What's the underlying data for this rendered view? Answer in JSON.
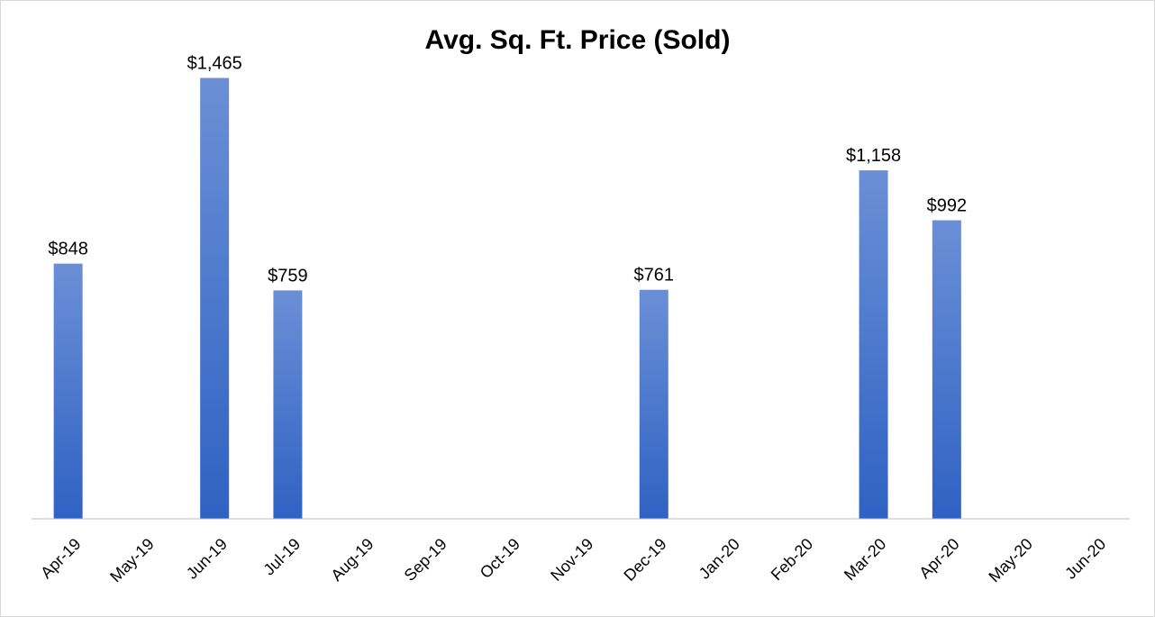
{
  "chart_data": {
    "type": "bar",
    "title": "Avg. Sq. Ft. Price (Sold)",
    "xlabel": "",
    "ylabel": "",
    "categories": [
      "Apr-19",
      "May-19",
      "Jun-19",
      "Jul-19",
      "Aug-19",
      "Sep-19",
      "Oct-19",
      "Nov-19",
      "Dec-19",
      "Jan-20",
      "Feb-20",
      "Mar-20",
      "Apr-20",
      "May-20",
      "Jun-20"
    ],
    "values": [
      848,
      null,
      1465,
      759,
      null,
      null,
      null,
      null,
      761,
      null,
      null,
      1158,
      992,
      null,
      null
    ],
    "data_labels": [
      "$848",
      "",
      "$1,465",
      "$759",
      "",
      "",
      "",
      "",
      "$761",
      "",
      "",
      "$1,158",
      "$992",
      "",
      ""
    ],
    "ylim": [
      0,
      1700
    ],
    "grid": false,
    "legend": "none",
    "bar_color_top": "#6b8fd6",
    "bar_color_bottom": "#2f62c3",
    "axis_color": "#bfbfbf"
  }
}
